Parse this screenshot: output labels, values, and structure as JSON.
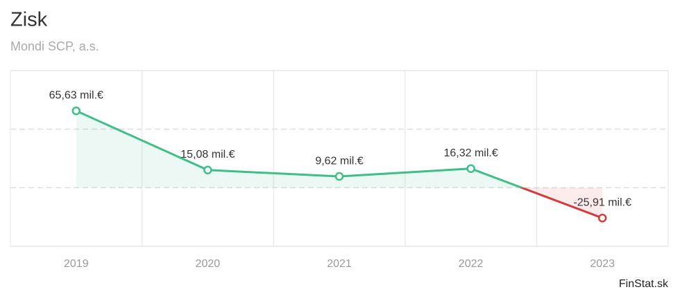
{
  "chart_data": {
    "type": "line",
    "title": "Zisk",
    "subtitle": "Mondi SCP, a.s.",
    "source": "FinStat.sk",
    "categories": [
      "2019",
      "2020",
      "2021",
      "2022",
      "2023"
    ],
    "values": [
      65.63,
      15.08,
      9.62,
      16.32,
      -25.91
    ],
    "value_labels": [
      "65,63 mil.€",
      "15,08 mil.€",
      "9,62 mil.€",
      "16,32 mil.€",
      "-25,91 mil.€"
    ],
    "color": "#3dbf85",
    "negative_color": "#d63b3b",
    "ylim": [
      -50,
      100
    ],
    "yticks": [
      -50,
      0,
      50,
      100
    ],
    "grid": true
  }
}
